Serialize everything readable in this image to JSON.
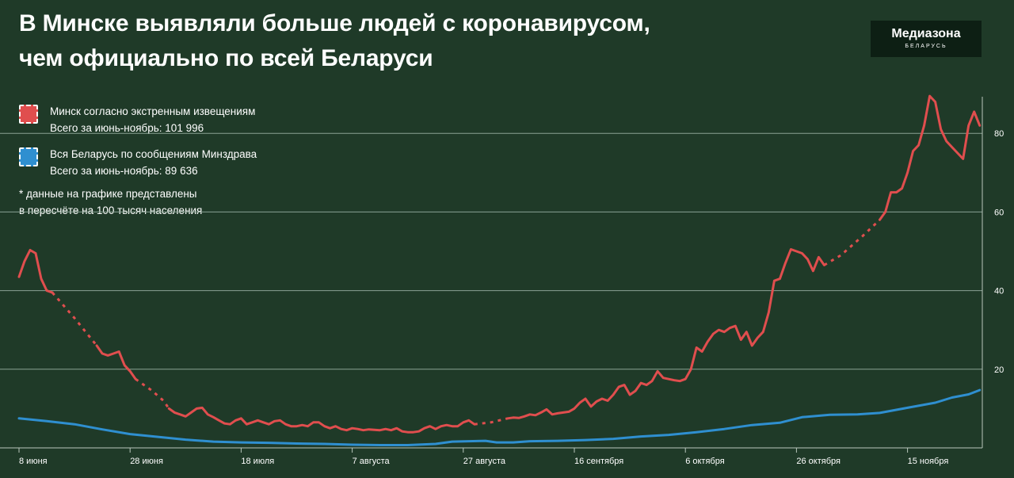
{
  "title_line1": "В Минске выявляли больше людей с коронавирусом,",
  "title_line2": "чем официально по всей Беларуси",
  "logo": {
    "main": "Медиазона",
    "sub": "БЕЛАРУСЬ"
  },
  "legend": [
    {
      "name": "Минск согласно экстренным извещениям",
      "total": "Всего за июнь-ноябрь: 101 996",
      "color": "#e04e4e"
    },
    {
      "name": "Вся Беларусь по сообщениям Минздрава",
      "total": "Всего за июнь-ноябрь: 89 636",
      "color": "#2f8fd0"
    }
  ],
  "note_line1": "* данные на графике представлены",
  "note_line2": "в пересчёте на 100 тысяч населения",
  "colors": {
    "background": "#1f3a28",
    "minsk": "#e04e4e",
    "belarus": "#2f8fd0",
    "grid": "#8aa293"
  },
  "chart_data": {
    "type": "line",
    "x_start": "8 июня",
    "x_unit": "day",
    "x_tick_labels": [
      "8 июня",
      "28 июня",
      "18 июля",
      "7 августа",
      "27 августа",
      "16 сентября",
      "6 октября",
      "26 октября",
      "15 ноября"
    ],
    "y_tick_labels": [
      "20",
      "40",
      "60",
      "80"
    ],
    "ylim": [
      0,
      90
    ],
    "grid": true,
    "series": [
      {
        "name": "Минск согласно экстренным извещениям",
        "segments": [
          {
            "style": "solid",
            "points": [
              [
                0,
                43.5
              ],
              [
                1,
                47.5
              ],
              [
                2,
                50.3
              ],
              [
                3,
                49.5
              ],
              [
                4,
                43
              ],
              [
                5,
                40
              ],
              [
                6,
                39.5
              ]
            ]
          },
          {
            "style": "dashed",
            "points": [
              [
                6,
                39.5
              ],
              [
                10,
                33
              ],
              [
                14,
                26
              ]
            ]
          },
          {
            "style": "solid",
            "points": [
              [
                14,
                26
              ],
              [
                15,
                24
              ],
              [
                16,
                23.5
              ],
              [
                17,
                24
              ],
              [
                18,
                24.5
              ],
              [
                19,
                21
              ],
              [
                20,
                19.5
              ],
              [
                21,
                17.5
              ]
            ]
          },
          {
            "style": "dashed",
            "points": [
              [
                21,
                17.5
              ],
              [
                24,
                14.5
              ],
              [
                26,
                12
              ],
              [
                27,
                10
              ]
            ]
          },
          {
            "style": "solid",
            "points": [
              [
                27,
                10
              ],
              [
                28,
                9
              ],
              [
                29,
                8.5
              ],
              [
                30,
                8
              ],
              [
                31,
                9
              ],
              [
                32,
                10
              ],
              [
                33,
                10.2
              ],
              [
                34,
                8.5
              ],
              [
                35,
                7.8
              ],
              [
                36,
                7
              ],
              [
                37,
                6.2
              ],
              [
                38,
                6
              ],
              [
                39,
                7
              ],
              [
                40,
                7.5
              ],
              [
                41,
                6
              ],
              [
                42,
                6.5
              ],
              [
                43,
                7
              ],
              [
                44,
                6.5
              ],
              [
                45,
                6
              ],
              [
                46,
                6.8
              ],
              [
                47,
                7
              ],
              [
                48,
                6
              ],
              [
                49,
                5.5
              ],
              [
                50,
                5.5
              ],
              [
                51,
                5.8
              ],
              [
                52,
                5.5
              ],
              [
                53,
                6.5
              ],
              [
                54,
                6.5
              ],
              [
                55,
                5.5
              ],
              [
                56,
                5
              ],
              [
                57,
                5.5
              ],
              [
                58,
                4.8
              ],
              [
                59,
                4.5
              ],
              [
                60,
                5
              ],
              [
                61,
                4.8
              ],
              [
                62,
                4.5
              ],
              [
                63,
                4.7
              ],
              [
                64,
                4.6
              ],
              [
                65,
                4.5
              ],
              [
                66,
                4.8
              ],
              [
                67,
                4.5
              ],
              [
                68,
                5
              ],
              [
                69,
                4.2
              ],
              [
                70,
                4
              ],
              [
                71,
                4
              ],
              [
                72,
                4.2
              ],
              [
                73,
                5
              ],
              [
                74,
                5.5
              ],
              [
                75,
                4.8
              ],
              [
                76,
                5.5
              ],
              [
                77,
                5.8
              ],
              [
                78,
                5.5
              ],
              [
                79,
                5.5
              ],
              [
                80,
                6.5
              ],
              [
                81,
                7
              ],
              [
                82,
                6
              ]
            ]
          },
          {
            "style": "dashed",
            "points": [
              [
                82,
                6
              ],
              [
                85,
                6.5
              ],
              [
                88,
                7.5
              ]
            ]
          },
          {
            "style": "solid",
            "points": [
              [
                88,
                7.5
              ],
              [
                89,
                7.7
              ],
              [
                90,
                7.6
              ],
              [
                91,
                8
              ],
              [
                92,
                8.5
              ],
              [
                93,
                8.3
              ],
              [
                94,
                9
              ],
              [
                95,
                9.8
              ],
              [
                96,
                8.5
              ],
              [
                97,
                8.8
              ],
              [
                98,
                9
              ],
              [
                99,
                9.2
              ],
              [
                100,
                10
              ],
              [
                101,
                11.5
              ],
              [
                102,
                12.5
              ],
              [
                103,
                10.5
              ],
              [
                104,
                11.8
              ],
              [
                105,
                12.5
              ],
              [
                106,
                12
              ],
              [
                107,
                13.5
              ],
              [
                108,
                15.5
              ],
              [
                109,
                16
              ],
              [
                110,
                13.5
              ],
              [
                111,
                14.5
              ],
              [
                112,
                16.5
              ],
              [
                113,
                16
              ],
              [
                114,
                17
              ],
              [
                115,
                19.5
              ],
              [
                116,
                17.8
              ],
              [
                117,
                17.5
              ],
              [
                118,
                17.2
              ],
              [
                119,
                17
              ],
              [
                120,
                17.5
              ],
              [
                121,
                20
              ],
              [
                122,
                25.5
              ],
              [
                123,
                24.5
              ],
              [
                124,
                27
              ],
              [
                125,
                29
              ],
              [
                126,
                30
              ],
              [
                127,
                29.5
              ],
              [
                128,
                30.5
              ],
              [
                129,
                31
              ],
              [
                130,
                27.5
              ],
              [
                131,
                29.5
              ],
              [
                132,
                26
              ],
              [
                133,
                28
              ],
              [
                134,
                29.5
              ],
              [
                135,
                34.5
              ],
              [
                136,
                42.5
              ],
              [
                137,
                43
              ],
              [
                138,
                47
              ],
              [
                139,
                50.5
              ],
              [
                140,
                50
              ],
              [
                141,
                49.5
              ],
              [
                142,
                48
              ],
              [
                143,
                45
              ],
              [
                144,
                48.5
              ],
              [
                145,
                46.5
              ]
            ]
          },
          {
            "style": "dashed",
            "points": [
              [
                145,
                46.5
              ],
              [
                148,
                49
              ],
              [
                152,
                54
              ],
              [
                155,
                58
              ]
            ]
          },
          {
            "style": "solid",
            "points": [
              [
                155,
                58
              ],
              [
                156,
                60
              ],
              [
                157,
                65
              ],
              [
                158,
                65
              ],
              [
                159,
                66
              ],
              [
                160,
                70
              ],
              [
                161,
                75.5
              ],
              [
                162,
                77
              ],
              [
                163,
                82
              ],
              [
                164,
                89.5
              ],
              [
                165,
                88
              ],
              [
                166,
                81
              ],
              [
                167,
                78
              ],
              [
                168,
                76.5
              ],
              [
                169,
                75
              ],
              [
                170,
                73.5
              ],
              [
                171,
                82
              ],
              [
                172,
                85.5
              ],
              [
                173,
                82
              ]
            ]
          }
        ]
      },
      {
        "name": "Вся Беларусь по сообщениям Минздрава",
        "points": [
          [
            0,
            7.5
          ],
          [
            5,
            6.8
          ],
          [
            10,
            6
          ],
          [
            15,
            4.7
          ],
          [
            20,
            3.5
          ],
          [
            25,
            2.8
          ],
          [
            30,
            2.1
          ],
          [
            35,
            1.6
          ],
          [
            40,
            1.4
          ],
          [
            45,
            1.3
          ],
          [
            50,
            1.1
          ],
          [
            55,
            1
          ],
          [
            60,
            0.8
          ],
          [
            65,
            0.7
          ],
          [
            70,
            0.7
          ],
          [
            75,
            1
          ],
          [
            78,
            1.6
          ],
          [
            81,
            1.7
          ],
          [
            84,
            1.8
          ],
          [
            86,
            1.4
          ],
          [
            89,
            1.4
          ],
          [
            92,
            1.7
          ],
          [
            97,
            1.8
          ],
          [
            102,
            2
          ],
          [
            107,
            2.3
          ],
          [
            112,
            2.9
          ],
          [
            117,
            3.3
          ],
          [
            122,
            4
          ],
          [
            127,
            4.8
          ],
          [
            132,
            5.8
          ],
          [
            137,
            6.4
          ],
          [
            141,
            7.8
          ],
          [
            146,
            8.4
          ],
          [
            151,
            8.5
          ],
          [
            155,
            8.9
          ],
          [
            160,
            10.2
          ],
          [
            165,
            11.5
          ],
          [
            168,
            12.8
          ],
          [
            171,
            13.6
          ],
          [
            173,
            14.7
          ]
        ]
      }
    ]
  }
}
